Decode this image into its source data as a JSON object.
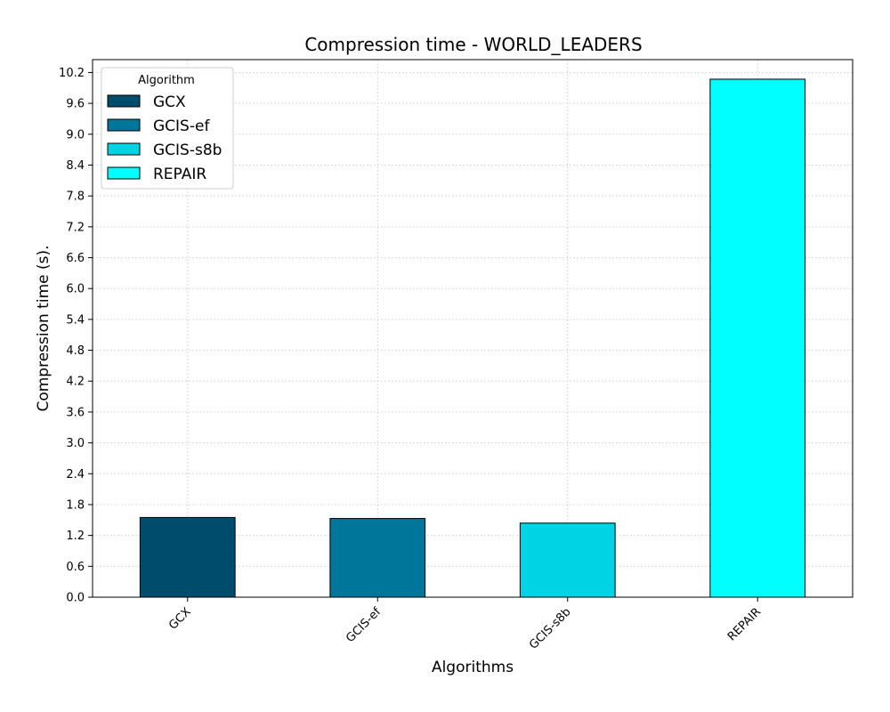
{
  "chart_data": {
    "type": "bar",
    "title": "Compression time -  WORLD_LEADERS",
    "xlabel": "Algorithms",
    "ylabel": "Compression time (s).",
    "categories": [
      "GCX",
      "GCIS-ef",
      "GCIS-s8b",
      "REPAIR"
    ],
    "values": [
      1.55,
      1.53,
      1.44,
      10.07
    ],
    "colors": [
      "#004c6d",
      "#00769a",
      "#00d3e3",
      "#00ffff"
    ],
    "ylim": [
      0,
      10.45
    ],
    "yticks": [
      "0.0",
      "0.6",
      "1.2",
      "1.8",
      "2.4",
      "3.0",
      "3.6",
      "4.2",
      "4.8",
      "5.4",
      "6.0",
      "6.6",
      "7.2",
      "7.8",
      "8.4",
      "9.0",
      "9.6",
      "10.2"
    ],
    "grid": true,
    "legend": {
      "title": "Algorithm",
      "position": "top-left",
      "entries": [
        "GCX",
        "GCIS-ef",
        "GCIS-s8b",
        "REPAIR"
      ]
    }
  }
}
